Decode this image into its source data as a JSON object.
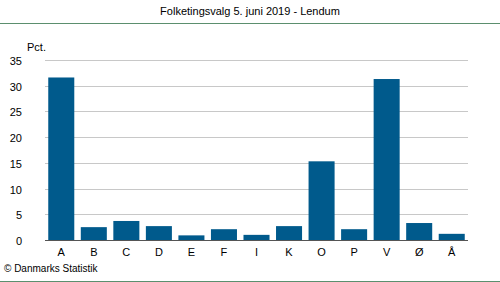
{
  "chart_data": {
    "type": "bar",
    "title": "Folketingsvalg 5. juni 2019 - Lendum",
    "y_label": "Pct.",
    "source": "© Danmarks Statistik",
    "categories": [
      "A",
      "B",
      "C",
      "D",
      "E",
      "F",
      "I",
      "K",
      "O",
      "P",
      "V",
      "Ø",
      "Å"
    ],
    "values": [
      31.6,
      2.5,
      3.7,
      2.7,
      0.9,
      2.1,
      1.0,
      2.7,
      15.3,
      2.1,
      31.3,
      3.3,
      1.2
    ],
    "color": "#005a8c",
    "ylim": [
      0,
      35
    ],
    "yticks": [
      0,
      5,
      10,
      15,
      20,
      25,
      30,
      35
    ],
    "grid": true
  }
}
